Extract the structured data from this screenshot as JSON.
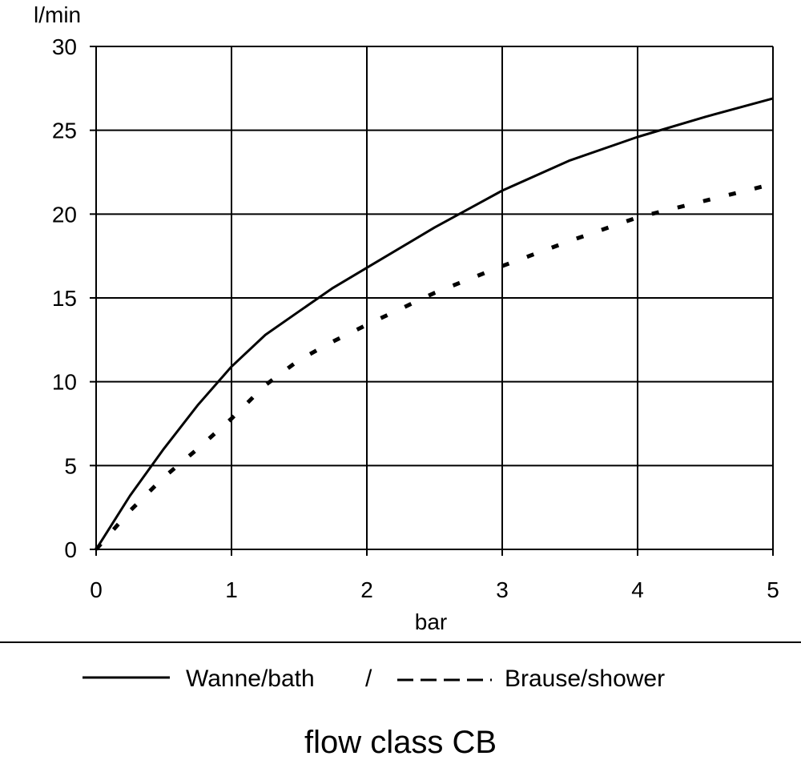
{
  "chart_data": {
    "type": "line",
    "title": "",
    "caption": "flow class CB",
    "xlabel": "bar",
    "ylabel": "l/min",
    "xlim": [
      0,
      5
    ],
    "ylim": [
      0,
      30
    ],
    "xticks": [
      0,
      1,
      2,
      3,
      4,
      5
    ],
    "yticks": [
      0,
      5,
      10,
      15,
      20,
      25,
      30
    ],
    "grid": true,
    "legend_position": "bottom",
    "legend_separator": "/",
    "series": [
      {
        "name": "Wanne/bath",
        "style": "solid",
        "color": "#000000",
        "x": [
          0,
          0.25,
          0.5,
          0.75,
          1.0,
          1.25,
          1.5,
          1.75,
          2.0,
          2.5,
          3.0,
          3.5,
          4.0,
          4.5,
          5.0
        ],
        "y": [
          0,
          3.2,
          6.0,
          8.6,
          10.9,
          12.8,
          14.2,
          15.6,
          16.8,
          19.2,
          21.4,
          23.2,
          24.6,
          25.8,
          26.9
        ]
      },
      {
        "name": "Brause/shower",
        "style": "dashed",
        "color": "#000000",
        "x": [
          0,
          0.25,
          0.5,
          0.75,
          1.0,
          1.25,
          1.5,
          1.75,
          2.0,
          2.5,
          3.0,
          3.5,
          4.0,
          4.5,
          5.0
        ],
        "y": [
          0,
          2.3,
          4.3,
          6.0,
          7.8,
          9.8,
          11.3,
          12.4,
          13.4,
          15.3,
          16.9,
          18.4,
          19.8,
          20.8,
          21.8
        ]
      }
    ]
  }
}
